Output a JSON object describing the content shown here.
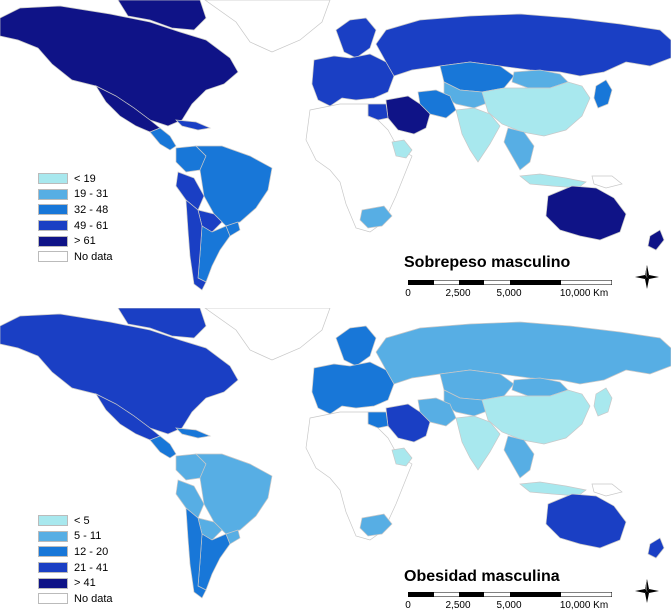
{
  "colors": {
    "ocean": "#ffffff",
    "no_data": "#ffffff",
    "border": "#c8c8c8",
    "class1": "#a8e8ee",
    "class2": "#57aee4",
    "class3": "#1877d8",
    "class4": "#1a3fc4",
    "class5": "#0f1387"
  },
  "maps": [
    {
      "title": "Sobrepeso masculino",
      "legend": [
        {
          "label": "< 19",
          "color": "#a8e8ee"
        },
        {
          "label": "19 - 31",
          "color": "#57aee4"
        },
        {
          "label": "32 - 48",
          "color": "#1877d8"
        },
        {
          "label": "49 - 61",
          "color": "#1a3fc4"
        },
        {
          "label": "> 61",
          "color": "#0f1387"
        },
        {
          "label": "No data",
          "color": "#ffffff"
        }
      ],
      "scale": {
        "ticks": [
          "0",
          "2,500",
          "5,000",
          "10,000 Km"
        ]
      },
      "region_colors": {
        "north_america": "#0f1387",
        "greenland": "#ffffff",
        "canada_arctic": "#0f1387",
        "mexico": "#0f1387",
        "central_america": "#1877d8",
        "caribbean": "#1a3fc4",
        "brazil": "#1877d8",
        "andes": "#1a3fc4",
        "peru": "#1a3fc4",
        "colombia": "#1877d8",
        "argentina": "#1877d8",
        "chile": "#1a3fc4",
        "uruguay": "#1877d8",
        "europe": "#1a3fc4",
        "russia": "#1a3fc4",
        "scandinavia": "#1a3fc4",
        "kazakhstan": "#1877d8",
        "mongolia": "#57aee4",
        "china": "#a8e8ee",
        "india": "#a8e8ee",
        "middle_east": "#0f1387",
        "iran": "#1877d8",
        "central_asia": "#57aee4",
        "africa": "#ffffff",
        "egypt": "#1a3fc4",
        "ethiopia": "#a8e8ee",
        "south_africa": "#57aee4",
        "southeast_asia": "#57aee4",
        "indonesia": "#a8e8ee",
        "japan": "#1877d8",
        "australia": "#0f1387",
        "new_zealand": "#0f1387",
        "new_guinea": "#ffffff"
      }
    },
    {
      "title": "Obesidad masculina",
      "legend": [
        {
          "label": "< 5",
          "color": "#a8e8ee"
        },
        {
          "label": "5 - 11",
          "color": "#57aee4"
        },
        {
          "label": "12 - 20",
          "color": "#1877d8"
        },
        {
          "label": "21 - 41",
          "color": "#1a3fc4"
        },
        {
          "label": "> 41",
          "color": "#0f1387"
        },
        {
          "label": "No data",
          "color": "#ffffff"
        }
      ],
      "scale": {
        "ticks": [
          "0",
          "2,500",
          "5,000",
          "10,000 Km"
        ]
      },
      "region_colors": {
        "north_america": "#1a3fc4",
        "greenland": "#ffffff",
        "canada_arctic": "#1a3fc4",
        "mexico": "#1a3fc4",
        "central_america": "#1877d8",
        "caribbean": "#1877d8",
        "brazil": "#57aee4",
        "andes": "#57aee4",
        "peru": "#57aee4",
        "colombia": "#57aee4",
        "argentina": "#1877d8",
        "chile": "#1877d8",
        "uruguay": "#57aee4",
        "europe": "#1877d8",
        "russia": "#57aee4",
        "scandinavia": "#1877d8",
        "kazakhstan": "#57aee4",
        "mongolia": "#57aee4",
        "china": "#a8e8ee",
        "india": "#a8e8ee",
        "middle_east": "#1a3fc4",
        "iran": "#57aee4",
        "central_asia": "#57aee4",
        "africa": "#ffffff",
        "egypt": "#1877d8",
        "ethiopia": "#a8e8ee",
        "south_africa": "#57aee4",
        "southeast_asia": "#57aee4",
        "indonesia": "#a8e8ee",
        "japan": "#a8e8ee",
        "australia": "#1a3fc4",
        "new_zealand": "#1a3fc4",
        "new_guinea": "#ffffff"
      }
    }
  ]
}
